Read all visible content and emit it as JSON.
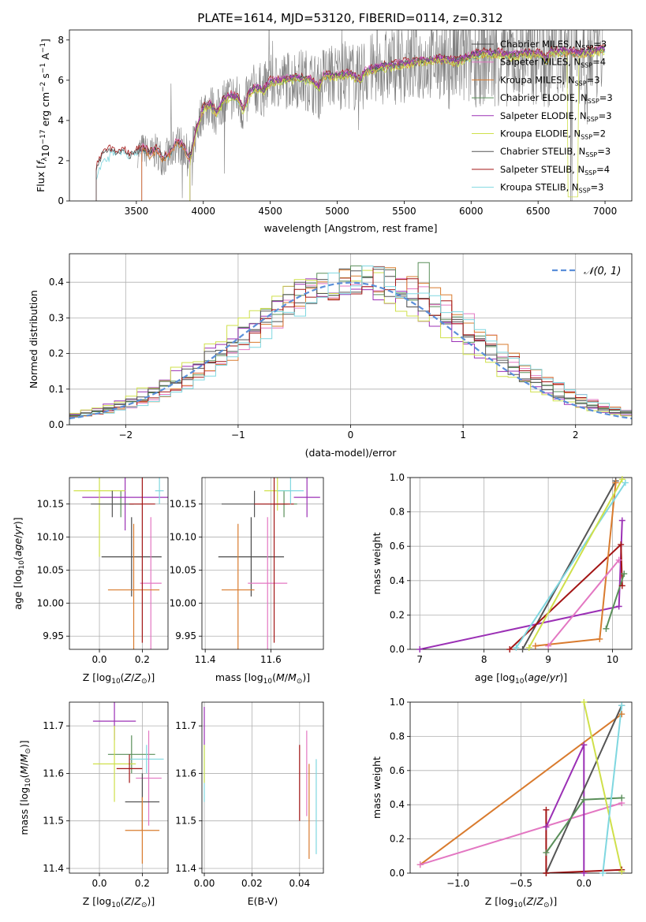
{
  "figure": {
    "title": "PLATE=1614, MJD=53120, FIBERID=0114, z=0.312"
  },
  "colors": {
    "Chabrier MILES": "#4a4a4a",
    "Salpeter MILES": "#e377c2",
    "Kroupa MILES": "#d97b2e",
    "Chabrier ELODIE": "#5a8f5a",
    "Salpeter ELODIE": "#9b30b5",
    "Kroupa ELODIE": "#cfe04a",
    "Chabrier STELIB": "#555555",
    "Salpeter STELIB": "#a31515",
    "Kroupa STELIB": "#7fd7e0",
    "data": "#808080",
    "gauss": "#5b8fd9",
    "steel": "#4a78c8",
    "green2": "#8dc26f"
  },
  "chart_data": [
    {
      "id": "spectrum",
      "type": "line",
      "xlabel": "wavelength [Angstrom, rest frame]",
      "ylabel": "Flux [f_λ 10^-17 erg cm^-2 s^-1 A^-1]",
      "xlim": [
        3000,
        7200
      ],
      "ylim": [
        0,
        8.5
      ],
      "xticks": [
        3500,
        4000,
        4500,
        5000,
        5500,
        6000,
        6500,
        7000
      ],
      "yticks": [
        0,
        2,
        4,
        6,
        8
      ],
      "legend_placement": "right",
      "legend": [
        {
          "name": "Chabrier MILES",
          "nssp": "3"
        },
        {
          "name": "Salpeter MILES",
          "nssp": "4"
        },
        {
          "name": "Kroupa MILES",
          "nssp": "3"
        },
        {
          "name": "Chabrier ELODIE",
          "nssp": "3"
        },
        {
          "name": "Salpeter ELODIE",
          "nssp": "3"
        },
        {
          "name": "Kroupa ELODIE",
          "nssp": "2"
        },
        {
          "name": "Chabrier STELIB",
          "nssp": "3"
        },
        {
          "name": "Salpeter STELIB",
          "nssp": "4"
        },
        {
          "name": "Kroupa STELIB",
          "nssp": "3"
        }
      ],
      "model_x": [
        3200,
        3250,
        3300,
        3350,
        3400,
        3450,
        3500,
        3550,
        3600,
        3650,
        3700,
        3750,
        3800,
        3850,
        3900,
        3950,
        4000,
        4050,
        4100,
        4150,
        4200,
        4250,
        4300,
        4350,
        4400,
        4450,
        4500,
        4600,
        4700,
        4800,
        4860,
        4900,
        5000,
        5100,
        5175,
        5200,
        5300,
        5400,
        5500,
        5600,
        5700,
        5800,
        5900,
        6000,
        6100,
        6200,
        6300,
        6400,
        6500,
        6563,
        6600,
        6700,
        6800,
        6900,
        7000
      ],
      "model_y": [
        1.6,
        2.3,
        2.5,
        2.3,
        2.5,
        2.2,
        2.4,
        2.6,
        2.3,
        2.5,
        2.1,
        2.3,
        2.9,
        2.7,
        2.0,
        3.5,
        4.6,
        4.8,
        4.3,
        5.0,
        5.2,
        5.1,
        4.5,
        5.4,
        5.6,
        5.5,
        5.9,
        6.0,
        6.1,
        6.0,
        5.6,
        6.2,
        6.2,
        6.3,
        5.9,
        6.4,
        6.6,
        6.7,
        6.8,
        6.9,
        7.0,
        7.0,
        6.9,
        7.2,
        7.3,
        7.3,
        7.2,
        7.3,
        7.3,
        7.0,
        7.4,
        7.4,
        7.3,
        7.4,
        7.5
      ]
    },
    {
      "id": "residuals",
      "type": "bar",
      "xlabel": "(data-model)/error",
      "ylabel": "Normed distribution",
      "xlim": [
        -2.5,
        2.5
      ],
      "ylim": [
        0,
        0.48
      ],
      "xticks": [
        -2,
        -1,
        0,
        1,
        2
      ],
      "yticks": [
        0.0,
        0.1,
        0.2,
        0.3,
        0.4
      ],
      "grid": true,
      "legend": "𝒩(0, 1)",
      "legend_placement": "top-right"
    },
    {
      "id": "age-vs-Z",
      "type": "scatter",
      "xlabel": "Z [log10(Z/Z⊙)]",
      "ylabel": "age  [log10(age/yr)]",
      "xlim": [
        -0.14,
        0.32
      ],
      "ylim": [
        9.93,
        10.19
      ],
      "xticks": [
        0.0,
        0.2
      ],
      "yticks": [
        9.95,
        10.0,
        10.05,
        10.1,
        10.15
      ],
      "grid": true,
      "points": [
        {
          "series": "Chabrier MILES",
          "x": 0.15,
          "y": 10.07,
          "xerr": 0.14,
          "yerr": 0.06
        },
        {
          "series": "Salpeter MILES",
          "x": 0.24,
          "y": 10.03,
          "xerr": 0.05,
          "yerr": 0.1
        },
        {
          "series": "Kroupa MILES",
          "x": 0.16,
          "y": 10.02,
          "xerr": 0.12,
          "yerr": 0.1
        },
        {
          "series": "Chabrier ELODIE",
          "x": 0.1,
          "y": 10.15,
          "xerr": 0.1,
          "yerr": 0.02
        },
        {
          "series": "Salpeter ELODIE",
          "x": 0.12,
          "y": 10.16,
          "xerr": 0.2,
          "yerr": 0.05
        },
        {
          "series": "Kroupa ELODIE",
          "x": 0.0,
          "y": 10.17,
          "xerr": 0.12,
          "yerr": 0.1
        },
        {
          "series": "Chabrier STELIB",
          "x": 0.06,
          "y": 10.15,
          "xerr": 0.1,
          "yerr": 0.02
        },
        {
          "series": "Salpeter STELIB",
          "x": 0.2,
          "y": 10.15,
          "xerr": 0.06,
          "yerr": 0.21
        },
        {
          "series": "Kroupa STELIB",
          "x": 0.28,
          "y": 10.17,
          "xerr": 0.02,
          "yerr": 0.02
        }
      ]
    },
    {
      "id": "age-vs-mass",
      "type": "scatter",
      "xlabel": "mass [log10(M/M⊙)]",
      "ylabel": "",
      "xlim": [
        11.39,
        11.76
      ],
      "ylim": [
        9.93,
        10.19
      ],
      "xticks": [
        11.4,
        11.6
      ],
      "yticks": [
        9.95,
        10.0,
        10.05,
        10.1,
        10.15
      ],
      "grid": true,
      "points": [
        {
          "series": "Chabrier MILES",
          "x": 11.54,
          "y": 10.07,
          "xerr": 0.1,
          "yerr": 0.06
        },
        {
          "series": "Salpeter MILES",
          "x": 11.59,
          "y": 10.03,
          "xerr": 0.06,
          "yerr": 0.1
        },
        {
          "series": "Kroupa MILES",
          "x": 11.5,
          "y": 10.02,
          "xerr": 0.05,
          "yerr": 0.1
        },
        {
          "series": "Chabrier ELODIE",
          "x": 11.64,
          "y": 10.15,
          "xerr": 0.04,
          "yerr": 0.02
        },
        {
          "series": "Salpeter ELODIE",
          "x": 11.71,
          "y": 10.16,
          "xerr": 0.04,
          "yerr": 0.03
        },
        {
          "series": "Kroupa ELODIE",
          "x": 11.62,
          "y": 10.17,
          "xerr": 0.04,
          "yerr": 0.03
        },
        {
          "series": "Chabrier STELIB",
          "x": 11.55,
          "y": 10.15,
          "xerr": 0.1,
          "yerr": 0.02
        },
        {
          "series": "Salpeter STELIB",
          "x": 11.61,
          "y": 10.15,
          "xerr": 0.06,
          "yerr": 0.21
        },
        {
          "series": "Kroupa STELIB",
          "x": 11.66,
          "y": 10.17,
          "xerr": 0.04,
          "yerr": 0.02
        }
      ]
    },
    {
      "id": "massweight-vs-age",
      "type": "line",
      "xlabel": "age  [log10(age/yr)]",
      "ylabel": "mass weight",
      "xlim": [
        6.85,
        10.3
      ],
      "ylim": [
        0,
        1.0
      ],
      "xticks": [
        7,
        8,
        9,
        10
      ],
      "yticks": [
        0.0,
        0.2,
        0.4,
        0.6,
        0.8,
        1.0
      ],
      "grid": true,
      "series": [
        {
          "series": "Salpeter ELODIE",
          "x": [
            7.0,
            10.1,
            10.15
          ],
          "y": [
            0.0,
            0.25,
            0.75
          ]
        },
        {
          "series": "Chabrier STELIB",
          "x": [
            8.6,
            10.05
          ],
          "y": [
            0.0,
            0.98
          ]
        },
        {
          "series": "Salpeter STELIB",
          "x": [
            8.4,
            10.13,
            10.15
          ],
          "y": [
            0.0,
            0.61,
            0.37
          ]
        },
        {
          "series": "Kroupa MILES",
          "x": [
            8.8,
            9.8,
            10.05
          ],
          "y": [
            0.02,
            0.06,
            0.97
          ]
        },
        {
          "series": "Salpeter MILES",
          "x": [
            9.0,
            10.1
          ],
          "y": [
            0.02,
            0.52
          ]
        },
        {
          "series": "Kroupa STELIB",
          "x": [
            8.5,
            10.2
          ],
          "y": [
            0.01,
            0.97
          ]
        },
        {
          "series": "Kroupa ELODIE",
          "x": [
            8.7,
            10.15
          ],
          "y": [
            0.01,
            0.99
          ]
        },
        {
          "series": "Chabrier ELODIE",
          "x": [
            9.9,
            10.18
          ],
          "y": [
            0.12,
            0.44
          ]
        }
      ]
    },
    {
      "id": "mass-vs-Z",
      "type": "scatter",
      "xlabel": "Z [log10(Z/Z⊙)]",
      "ylabel": "mass [log10(M/M⊙)]",
      "xlim": [
        -0.14,
        0.32
      ],
      "ylim": [
        11.39,
        11.75
      ],
      "xticks": [
        0.0,
        0.2
      ],
      "yticks": [
        11.4,
        11.5,
        11.6,
        11.7
      ],
      "grid": true,
      "points": [
        {
          "series": "Salpeter ELODIE",
          "x": 0.07,
          "y": 11.71,
          "xerr": 0.1,
          "yerr": 0.04
        },
        {
          "series": "Chabrier ELODIE",
          "x": 0.15,
          "y": 11.64,
          "xerr": 0.11,
          "yerr": 0.04
        },
        {
          "series": "Kroupa ELODIE",
          "x": 0.07,
          "y": 11.62,
          "xerr": 0.1,
          "yerr": 0.08
        },
        {
          "series": "Kroupa STELIB",
          "x": 0.22,
          "y": 11.63,
          "xerr": 0.08,
          "yerr": 0.03
        },
        {
          "series": "Salpeter MILES",
          "x": 0.23,
          "y": 11.59,
          "xerr": 0.06,
          "yerr": 0.1
        },
        {
          "series": "Chabrier MILES",
          "x": 0.2,
          "y": 11.54,
          "xerr": 0.08,
          "yerr": 0.06
        },
        {
          "series": "Kroupa MILES",
          "x": 0.2,
          "y": 11.48,
          "xerr": 0.08,
          "yerr": 0.07
        },
        {
          "series": "Salpeter STELIB",
          "x": 0.14,
          "y": 11.61,
          "xerr": 0.06,
          "yerr": 0.03
        }
      ]
    },
    {
      "id": "mass-vs-ebv",
      "type": "scatter",
      "xlabel": "E(B-V)",
      "ylabel": "",
      "xlim": [
        -0.001,
        0.05
      ],
      "ylim": [
        11.39,
        11.75
      ],
      "xticks": [
        0.0,
        0.02,
        0.04
      ],
      "yticks": [
        11.4,
        11.5,
        11.6,
        11.7
      ],
      "grid": true,
      "points": [
        {
          "series": "Salpeter ELODIE",
          "x": 0.0,
          "y": 11.7,
          "yerr": 0.04
        },
        {
          "series": "Kroupa STELIB",
          "x": 0.0,
          "y": 11.6,
          "yerr": 0.06
        },
        {
          "series": "Kroupa ELODIE",
          "x": 0.0,
          "y": 11.62,
          "yerr": 0.04
        },
        {
          "series": "Salpeter STELIB",
          "x": 0.04,
          "y": 11.58,
          "yerr": 0.08
        },
        {
          "series": "Salpeter MILES",
          "x": 0.043,
          "y": 11.6,
          "yerr": 0.09
        },
        {
          "series": "Kroupa MILES",
          "x": 0.044,
          "y": 11.52,
          "yerr": 0.1
        },
        {
          "series": "Kroupa STELIB",
          "x": 0.047,
          "y": 11.53,
          "yerr": 0.1
        }
      ]
    },
    {
      "id": "massweight-vs-Z",
      "type": "line",
      "xlabel": "Z [log10(Z/Z⊙)]",
      "ylabel": "mass weight",
      "xlim": [
        -1.38,
        0.38
      ],
      "ylim": [
        0,
        1.0
      ],
      "xticks": [
        -1.0,
        -0.5,
        0.0
      ],
      "yticks": [
        0.0,
        0.2,
        0.4,
        0.6,
        0.8,
        1.0
      ],
      "grid": true,
      "series": [
        {
          "series": "Kroupa MILES",
          "x": [
            -1.3,
            0.3
          ],
          "y": [
            0.05,
            0.93
          ]
        },
        {
          "series": "Salpeter MILES",
          "x": [
            -1.3,
            0.3
          ],
          "y": [
            0.05,
            0.41
          ]
        },
        {
          "series": "Salpeter ELODIE",
          "x": [
            -0.3,
            -0.0,
            0.0
          ],
          "y": [
            0.27,
            0.75,
            0.0
          ]
        },
        {
          "series": "Chabrier STELIB",
          "x": [
            -0.3,
            0.3
          ],
          "y": [
            0.0,
            0.98
          ]
        },
        {
          "series": "Chabrier ELODIE",
          "x": [
            -0.3,
            0.0,
            0.3
          ],
          "y": [
            0.12,
            0.43,
            0.44
          ]
        },
        {
          "series": "Salpeter STELIB",
          "x": [
            -0.3,
            -0.3,
            0.3
          ],
          "y": [
            0.37,
            0.0,
            0.02
          ]
        },
        {
          "series": "Kroupa ELODIE",
          "x": [
            0.0,
            0.3
          ],
          "y": [
            1.0,
            0.01
          ]
        },
        {
          "series": "Kroupa STELIB",
          "x": [
            0.15,
            0.3
          ],
          "y": [
            0.0,
            0.98
          ]
        }
      ]
    }
  ]
}
